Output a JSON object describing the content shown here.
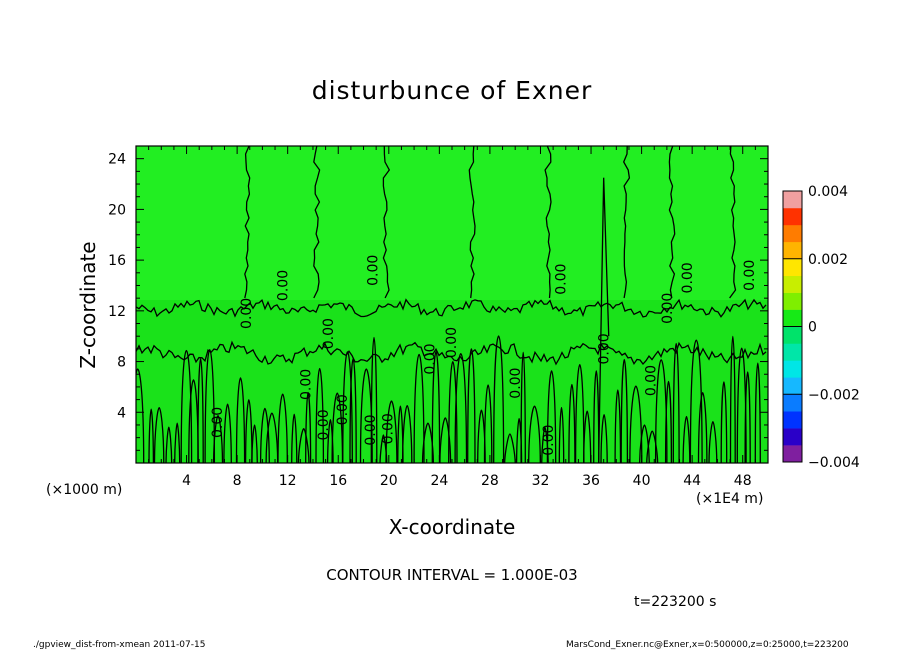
{
  "chart_data": {
    "type": "heatmap",
    "title": "disturbunce of Exner",
    "xlabel": "X-coordinate",
    "ylabel": "Z-coordinate",
    "x_unit_left": "(×1000 m)",
    "x_unit_right": "(×1E4 m)",
    "xlim": [
      0,
      50
    ],
    "ylim": [
      0,
      25
    ],
    "x_ticks": [
      "4",
      "8",
      "12",
      "16",
      "20",
      "24",
      "28",
      "32",
      "36",
      "40",
      "44",
      "48"
    ],
    "y_ticks": [
      "4",
      "8",
      "12",
      "16",
      "20",
      "24"
    ],
    "x_tick_values": [
      4,
      8,
      12,
      16,
      20,
      24,
      28,
      32,
      36,
      40,
      44,
      48
    ],
    "y_tick_values": [
      4,
      8,
      12,
      16,
      20,
      24
    ],
    "colorbar": {
      "range": [
        -0.004,
        0.004
      ],
      "tick_labels": [
        "0.004",
        "0.002",
        "0",
        "−0.002",
        "−0.004"
      ],
      "tick_values": [
        0.004,
        0.002,
        0,
        -0.002,
        -0.004
      ],
      "colors": [
        "#7f1f9f",
        "#2a00c8",
        "#0033ff",
        "#0a7cff",
        "#16b8ff",
        "#00e6e6",
        "#00e6a8",
        "#00e36a",
        "#16ea16",
        "#7fef00",
        "#c8ee00",
        "#ffe600",
        "#ffb400",
        "#ff7c00",
        "#ff3200",
        "#f0a0a0"
      ]
    },
    "contour_interval_text": "CONTOUR INTERVAL = 1.000E-03",
    "contour_labels": [
      "0.00",
      "0.00",
      "0.00",
      "0.00",
      "0.00",
      "0.00",
      "0.00",
      "0.00",
      "0.00",
      "0.00",
      "0.00",
      "0.00",
      "0.00",
      "0.00",
      "0.00",
      "0.00",
      "0.00",
      "0.00",
      "0.00",
      "0.00"
    ],
    "background_value": 0,
    "upper_region_color": "#22ee22",
    "lower_region_color": "#1ae21a"
  },
  "time_label": "t=223200 s",
  "footer": {
    "left": "./gpview_dist-from-xmean  2011-07-15",
    "right": "MarsCond_Exner.nc@Exner,x=0:500000,z=0:25000,t=223200"
  }
}
